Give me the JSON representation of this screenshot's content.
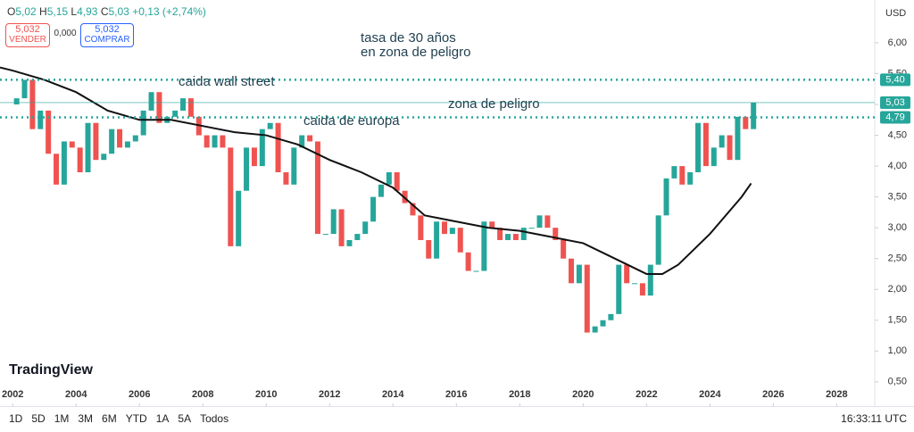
{
  "toolbar": {
    "ohlc": [
      {
        "label": "O",
        "value": "5,02"
      },
      {
        "label": "H",
        "value": "5,15"
      },
      {
        "label": "L",
        "value": "4,93"
      },
      {
        "label": "C",
        "value": "5,03"
      }
    ],
    "change": "+0,13 (+2,74%)",
    "sell": {
      "price": "5,032",
      "label": "VENDER"
    },
    "spread": "0,000",
    "buy": {
      "price": "5,032",
      "label": "COMPRAR"
    },
    "currency": "USD",
    "logo": "TradingView",
    "timeframes": [
      "1D",
      "5D",
      "1M",
      "3M",
      "6M",
      "YTD",
      "1A",
      "5A",
      "Todos"
    ],
    "clock": "16:33:11 UTC"
  },
  "chart_data": {
    "type": "candlestick",
    "annotations": [
      "tasa de 30 años",
      "en zona de peligro",
      "caida wall street",
      "zona de peligro",
      "caida de europa"
    ],
    "up_color": "#26a69a",
    "down_color": "#ef5350",
    "x": [
      2002.125,
      2002.375,
      2002.625,
      2002.875,
      2003.125,
      2003.375,
      2003.625,
      2003.875,
      2004.125,
      2004.375,
      2004.625,
      2004.875,
      2005.125,
      2005.375,
      2005.625,
      2005.875,
      2006.125,
      2006.375,
      2006.625,
      2006.875,
      2007.125,
      2007.375,
      2007.625,
      2007.875,
      2008.125,
      2008.375,
      2008.625,
      2008.875,
      2009.125,
      2009.375,
      2009.625,
      2009.875,
      2010.125,
      2010.375,
      2010.625,
      2010.875,
      2011.125,
      2011.375,
      2011.625,
      2011.875,
      2012.125,
      2012.375,
      2012.625,
      2012.875,
      2013.125,
      2013.375,
      2013.625,
      2013.875,
      2014.125,
      2014.375,
      2014.625,
      2014.875,
      2015.125,
      2015.375,
      2015.625,
      2015.875,
      2016.125,
      2016.375,
      2016.625,
      2016.875,
      2017.125,
      2017.375,
      2017.625,
      2017.875,
      2018.125,
      2018.375,
      2018.625,
      2018.875,
      2019.125,
      2019.375,
      2019.625,
      2019.875,
      2020.125,
      2020.375,
      2020.625,
      2020.875,
      2021.125,
      2021.375,
      2021.625,
      2021.875,
      2022.125,
      2022.375,
      2022.625,
      2022.875,
      2023.125,
      2023.375,
      2023.625,
      2023.875,
      2024.125,
      2024.375,
      2024.625,
      2024.875,
      2025.125,
      2025.375
    ],
    "open": [
      5.0,
      5.1,
      5.4,
      4.6,
      4.9,
      4.2,
      3.7,
      4.4,
      4.3,
      3.9,
      4.7,
      4.1,
      4.2,
      4.6,
      4.3,
      4.4,
      4.5,
      4.9,
      5.2,
      4.7,
      4.8,
      4.9,
      5.1,
      4.8,
      4.5,
      4.3,
      4.5,
      4.3,
      2.7,
      3.6,
      4.3,
      4.0,
      4.6,
      4.7,
      3.9,
      3.7,
      4.3,
      4.5,
      4.4,
      2.9,
      2.9,
      3.3,
      2.7,
      2.8,
      2.9,
      3.1,
      3.5,
      3.7,
      3.9,
      3.6,
      3.4,
      3.2,
      2.8,
      2.5,
      3.1,
      2.9,
      3.0,
      2.6,
      2.3,
      2.3,
      3.1,
      3.0,
      2.8,
      2.9,
      2.8,
      3.0,
      3.0,
      3.2,
      3.0,
      2.8,
      2.5,
      2.1,
      2.4,
      1.3,
      1.4,
      1.5,
      1.6,
      2.4,
      2.1,
      2.1,
      1.9,
      2.4,
      3.2,
      3.8,
      4.0,
      3.7,
      3.9,
      4.7,
      4.0,
      4.3,
      4.5,
      4.1,
      4.8,
      4.6
    ],
    "close": [
      5.1,
      5.4,
      4.6,
      4.9,
      4.2,
      3.7,
      4.4,
      4.3,
      3.9,
      4.7,
      4.1,
      4.2,
      4.6,
      4.3,
      4.4,
      4.5,
      4.9,
      5.2,
      4.7,
      4.8,
      4.9,
      5.1,
      4.8,
      4.5,
      4.3,
      4.5,
      4.3,
      2.7,
      3.6,
      4.3,
      4.0,
      4.6,
      4.7,
      3.9,
      3.7,
      4.3,
      4.5,
      4.4,
      2.9,
      2.9,
      3.3,
      2.7,
      2.8,
      2.9,
      3.1,
      3.5,
      3.7,
      3.9,
      3.6,
      3.4,
      3.2,
      2.8,
      2.5,
      3.1,
      2.9,
      3.0,
      2.6,
      2.3,
      2.3,
      3.1,
      3.0,
      2.8,
      2.9,
      2.8,
      3.0,
      3.0,
      3.2,
      3.0,
      2.8,
      2.5,
      2.1,
      2.4,
      1.3,
      1.4,
      1.5,
      1.6,
      2.4,
      2.1,
      2.1,
      1.9,
      2.4,
      3.2,
      3.8,
      4.0,
      3.7,
      3.9,
      4.7,
      4.0,
      4.3,
      4.5,
      4.1,
      4.8,
      4.6,
      5.03
    ],
    "ma": {
      "color": "#111111",
      "x": [
        2001.6,
        2002,
        2003,
        2004,
        2005,
        2006,
        2007,
        2008,
        2009,
        2010,
        2011,
        2012,
        2013,
        2014,
        2015,
        2016,
        2017,
        2018,
        2019,
        2020,
        2021,
        2022,
        2022.5,
        2023,
        2024,
        2025,
        2025.3
      ],
      "values": [
        5.6,
        5.55,
        5.4,
        5.2,
        4.9,
        4.75,
        4.75,
        4.65,
        4.55,
        4.5,
        4.35,
        4.1,
        3.9,
        3.65,
        3.2,
        3.1,
        3.0,
        2.95,
        2.85,
        2.75,
        2.5,
        2.25,
        2.25,
        2.4,
        2.9,
        3.5,
        3.72
      ]
    },
    "levels": [
      {
        "value": 5.4,
        "label": "5,40",
        "style": "dotted"
      },
      {
        "value": 5.03,
        "label": "5,03",
        "style": "solid"
      },
      {
        "value": 4.79,
        "label": "4,79",
        "style": "dotted"
      }
    ],
    "xlim": [
      2001.6,
      2029.2
    ],
    "xticks": [
      2002,
      2004,
      2006,
      2008,
      2010,
      2012,
      2014,
      2016,
      2018,
      2020,
      2022,
      2024,
      2026,
      2028
    ],
    "ylim": [
      0.15,
      6.26
    ],
    "yticks": [
      {
        "value": 0.5,
        "label": "0,50"
      },
      {
        "value": 1,
        "label": "1,00"
      },
      {
        "value": 1.5,
        "label": "1,50"
      },
      {
        "value": 2,
        "label": "2,00"
      },
      {
        "value": 2.5,
        "label": "2,50"
      },
      {
        "value": 3,
        "label": "3,00"
      },
      {
        "value": 3.5,
        "label": "3,50"
      },
      {
        "value": 4,
        "label": "4,00"
      },
      {
        "value": 4.5,
        "label": "4,50"
      },
      {
        "value": 5,
        "label": "5,00"
      },
      {
        "value": 5.5,
        "label": "5,50"
      },
      {
        "value": 6,
        "label": "6,00"
      }
    ]
  }
}
